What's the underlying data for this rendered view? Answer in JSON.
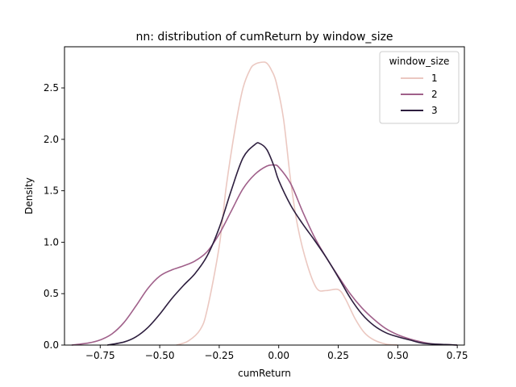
{
  "chart_data": {
    "type": "line",
    "title": "nn: distribution of cumReturn by window_size",
    "xlabel": "cumReturn",
    "ylabel": "Density",
    "xlim": [
      -0.9,
      0.78
    ],
    "ylim": [
      0,
      2.9
    ],
    "xticks": [
      -0.75,
      -0.5,
      -0.25,
      0.0,
      0.25,
      0.5,
      0.75
    ],
    "xtick_labels": [
      "−0.75",
      "−0.50",
      "−0.25",
      "0.00",
      "0.25",
      "0.50",
      "0.75"
    ],
    "yticks": [
      0.0,
      0.5,
      1.0,
      1.5,
      2.0,
      2.5
    ],
    "ytick_labels": [
      "0.0",
      "0.5",
      "1.0",
      "1.5",
      "2.0",
      "2.5"
    ],
    "grid": false,
    "legend": {
      "title": "window_size",
      "placement": "top-right"
    },
    "series": [
      {
        "name": "1",
        "color": "#ebc8c1",
        "x": [
          -0.43,
          -0.38,
          -0.33,
          -0.3,
          -0.25,
          -0.22,
          -0.18,
          -0.15,
          -0.12,
          -0.1,
          -0.07,
          -0.05,
          -0.03,
          -0.01,
          0.02,
          0.05,
          0.08,
          0.12,
          0.16,
          0.2,
          0.25,
          0.28,
          0.32,
          0.36,
          0.4,
          0.45,
          0.5
        ],
        "y": [
          0.0,
          0.04,
          0.15,
          0.35,
          0.96,
          1.55,
          2.15,
          2.5,
          2.68,
          2.73,
          2.75,
          2.74,
          2.67,
          2.55,
          2.2,
          1.6,
          1.15,
          0.78,
          0.55,
          0.53,
          0.54,
          0.45,
          0.26,
          0.12,
          0.05,
          0.01,
          0.0
        ]
      },
      {
        "name": "2",
        "color": "#a0608a",
        "x": [
          -0.87,
          -0.8,
          -0.75,
          -0.7,
          -0.65,
          -0.6,
          -0.55,
          -0.5,
          -0.45,
          -0.4,
          -0.35,
          -0.3,
          -0.25,
          -0.2,
          -0.15,
          -0.1,
          -0.05,
          -0.02,
          0.0,
          0.05,
          0.1,
          0.15,
          0.2,
          0.25,
          0.3,
          0.35,
          0.4,
          0.45,
          0.5,
          0.55,
          0.6,
          0.65,
          0.7,
          0.75
        ],
        "y": [
          0.0,
          0.02,
          0.05,
          0.11,
          0.22,
          0.38,
          0.55,
          0.67,
          0.73,
          0.77,
          0.82,
          0.91,
          1.08,
          1.3,
          1.52,
          1.66,
          1.74,
          1.75,
          1.73,
          1.57,
          1.3,
          1.05,
          0.85,
          0.67,
          0.5,
          0.36,
          0.25,
          0.16,
          0.1,
          0.06,
          0.03,
          0.01,
          0.005,
          0.0
        ]
      },
      {
        "name": "3",
        "color": "#2d1e3e",
        "x": [
          -0.72,
          -0.65,
          -0.6,
          -0.55,
          -0.5,
          -0.45,
          -0.4,
          -0.35,
          -0.3,
          -0.25,
          -0.2,
          -0.15,
          -0.1,
          -0.08,
          -0.05,
          -0.02,
          0.0,
          0.05,
          0.1,
          0.15,
          0.2,
          0.25,
          0.3,
          0.35,
          0.4,
          0.45,
          0.5,
          0.55,
          0.6,
          0.65,
          0.7,
          0.75
        ],
        "y": [
          0.0,
          0.03,
          0.08,
          0.17,
          0.3,
          0.45,
          0.58,
          0.7,
          0.87,
          1.14,
          1.5,
          1.82,
          1.95,
          1.96,
          1.9,
          1.74,
          1.6,
          1.36,
          1.18,
          1.02,
          0.85,
          0.66,
          0.46,
          0.3,
          0.19,
          0.12,
          0.08,
          0.05,
          0.02,
          0.01,
          0.005,
          0.0
        ]
      }
    ]
  }
}
